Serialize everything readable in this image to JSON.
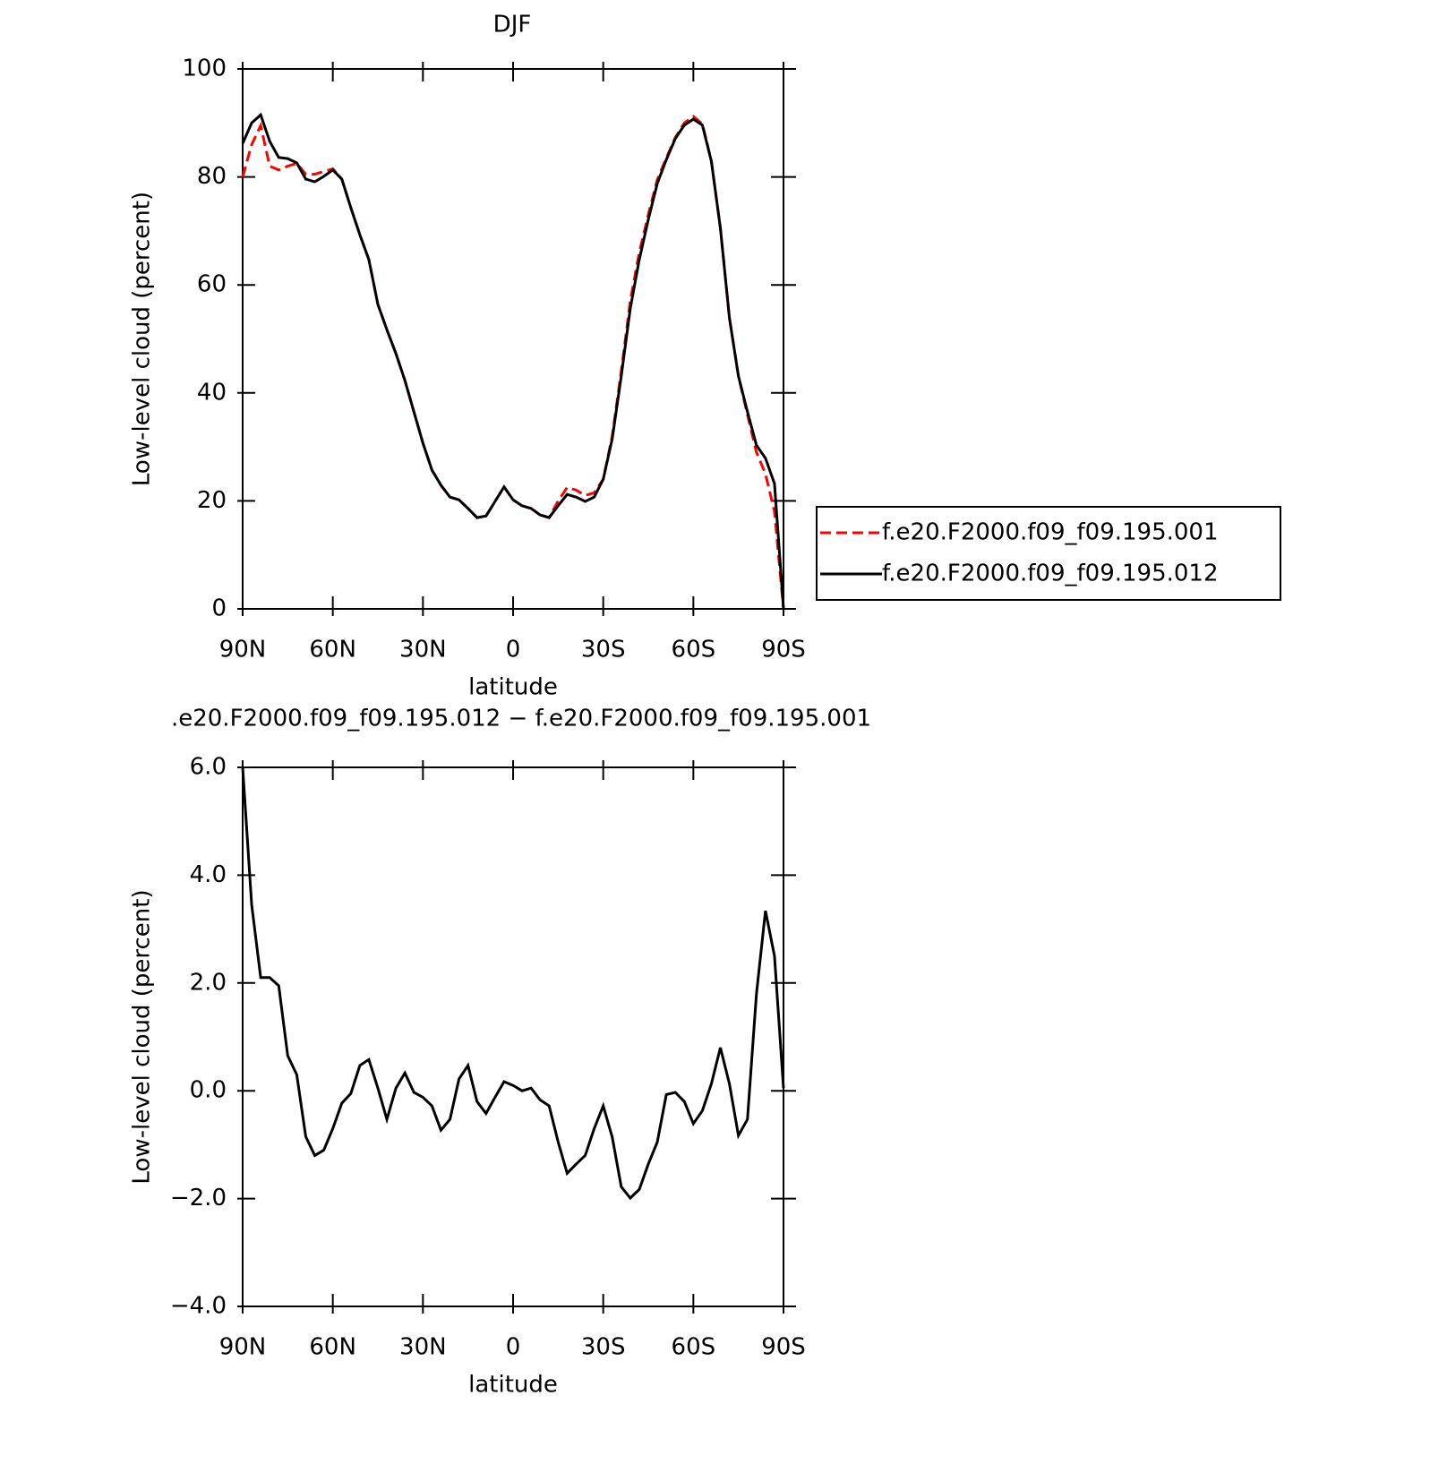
{
  "chart_data": [
    {
      "type": "line",
      "title": "DJF",
      "xlabel": "latitude",
      "ylabel": "Low-level cloud (percent)",
      "xlim": [
        90,
        -90
      ],
      "xticks": [
        {
          "value": 90,
          "label": "90N"
        },
        {
          "value": 60,
          "label": "60N"
        },
        {
          "value": 30,
          "label": "30N"
        },
        0,
        {
          "value": -30,
          "label": "30S"
        },
        {
          "value": -60,
          "label": "60S"
        },
        {
          "value": -90,
          "label": "90S"
        }
      ],
      "ylim": [
        0,
        100
      ],
      "yticks": [
        0,
        20,
        40,
        60,
        80,
        100
      ],
      "legend": "right",
      "x": [
        90,
        87,
        84,
        81,
        78,
        75,
        72,
        69,
        66,
        63,
        60,
        57,
        54,
        51,
        48,
        45,
        42,
        39,
        36,
        33,
        30,
        27,
        24,
        21,
        18,
        15,
        12,
        9,
        6,
        3,
        0,
        -3,
        -6,
        -9,
        -12,
        -15,
        -18,
        -21,
        -24,
        -27,
        -30,
        -33,
        -36,
        -39,
        -42,
        -45,
        -48,
        -51,
        -54,
        -57,
        -60,
        -63,
        -66,
        -69,
        -72,
        -75,
        -78,
        -81,
        -84,
        -87,
        -90
      ],
      "series": [
        {
          "name": "f.e20.F2000.f09_f09.195.001",
          "color": "#ff0000",
          "line_style": "dashed",
          "values": [
            80,
            86,
            89.5,
            82,
            81.3,
            82,
            82.5,
            80.5,
            80.5,
            81,
            81.5,
            79.6,
            74.3,
            69.3,
            64.7,
            56.4,
            51.7,
            47.3,
            42.3,
            36.5,
            30.7,
            25.7,
            22.9,
            20.7,
            20.2,
            18.6,
            16.9,
            17.2,
            19.9,
            22.6,
            20.2,
            19.1,
            18.6,
            17.4,
            16.9,
            20,
            22.5,
            22,
            21,
            21.5,
            24,
            32,
            44,
            57,
            66,
            73,
            79.5,
            83.5,
            87.3,
            90,
            91.2,
            89.8,
            82.9,
            70.5,
            53.9,
            43.1,
            36,
            29,
            25,
            18,
            0
          ]
        },
        {
          "name": "f.e20.F2000.f09_f09.195.012",
          "color": "#000000",
          "line_style": "solid",
          "values": [
            86.2,
            90,
            91.5,
            86.6,
            83.6,
            83.4,
            82.6,
            79.6,
            79.1,
            80.1,
            81.3,
            79.6,
            74.3,
            69.3,
            64.7,
            56.4,
            51.7,
            47.3,
            42.3,
            36.5,
            30.7,
            25.7,
            22.9,
            20.7,
            20.2,
            18.6,
            16.9,
            17.2,
            19.9,
            22.6,
            20.2,
            19.1,
            18.6,
            17.4,
            16.9,
            19.1,
            21.2,
            20.7,
            19.9,
            20.7,
            24,
            31.5,
            43.1,
            55.6,
            64.7,
            72.1,
            78.8,
            83.2,
            87.1,
            89.6,
            90.7,
            89.6,
            82.9,
            70.5,
            53.9,
            43.1,
            36.5,
            30.3,
            27.9,
            23.2,
            0
          ]
        }
      ]
    },
    {
      "type": "line",
      "title": ".e20.F2000.f09_f09.195.012 − f.e20.F2000.f09_f09.195.001",
      "xlabel": "latitude",
      "ylabel": "Low-level cloud (percent)",
      "xlim": [
        90,
        -90
      ],
      "xticks": [
        {
          "value": 90,
          "label": "90N"
        },
        {
          "value": 60,
          "label": "60N"
        },
        {
          "value": 30,
          "label": "30N"
        },
        0,
        {
          "value": -30,
          "label": "30S"
        },
        {
          "value": -60,
          "label": "60S"
        },
        {
          "value": -90,
          "label": "90S"
        }
      ],
      "ylim": [
        -4,
        6
      ],
      "yticks": [
        {
          "value": -4,
          "label": "−4.0"
        },
        {
          "value": -2,
          "label": "−2.0"
        },
        {
          "value": 0,
          "label": "0.0"
        },
        {
          "value": 2,
          "label": "2.0"
        },
        {
          "value": 4,
          "label": "4.0"
        },
        {
          "value": 6,
          "label": "6.0"
        }
      ],
      "x": [
        90,
        87,
        84,
        81,
        78,
        75,
        72,
        69,
        66,
        63,
        60,
        57,
        54,
        51,
        48,
        45,
        42,
        39,
        36,
        33,
        30,
        27,
        24,
        21,
        18,
        15,
        12,
        9,
        6,
        3,
        0,
        -3,
        -6,
        -9,
        -12,
        -15,
        -18,
        -21,
        -24,
        -27,
        -30,
        -33,
        -36,
        -39,
        -42,
        -45,
        -48,
        -51,
        -54,
        -57,
        -60,
        -63,
        -66,
        -69,
        -72,
        -75,
        -78,
        -81,
        -84,
        -87,
        -90
      ],
      "series": [
        {
          "color": "#000000",
          "line_style": "solid",
          "values": [
            6.0,
            3.45,
            2.1,
            2.1,
            1.95,
            0.65,
            0.3,
            -0.85,
            -1.2,
            -1.1,
            -0.7,
            -0.23,
            -0.05,
            0.47,
            0.58,
            0.05,
            -0.53,
            0.05,
            0.33,
            -0.03,
            -0.12,
            -0.28,
            -0.73,
            -0.53,
            0.22,
            0.47,
            -0.2,
            -0.42,
            -0.12,
            0.17,
            0.1,
            0,
            0.05,
            -0.17,
            -0.28,
            -0.95,
            -1.53,
            -1.36,
            -1.2,
            -0.7,
            -0.28,
            -0.86,
            -1.78,
            -1.99,
            -1.83,
            -1.36,
            -0.95,
            -0.07,
            -0.03,
            -0.2,
            -0.61,
            -0.37,
            0.13,
            0.8,
            0.13,
            -0.83,
            -0.53,
            1.8,
            3.34,
            2.5,
            0.05
          ]
        }
      ]
    }
  ]
}
